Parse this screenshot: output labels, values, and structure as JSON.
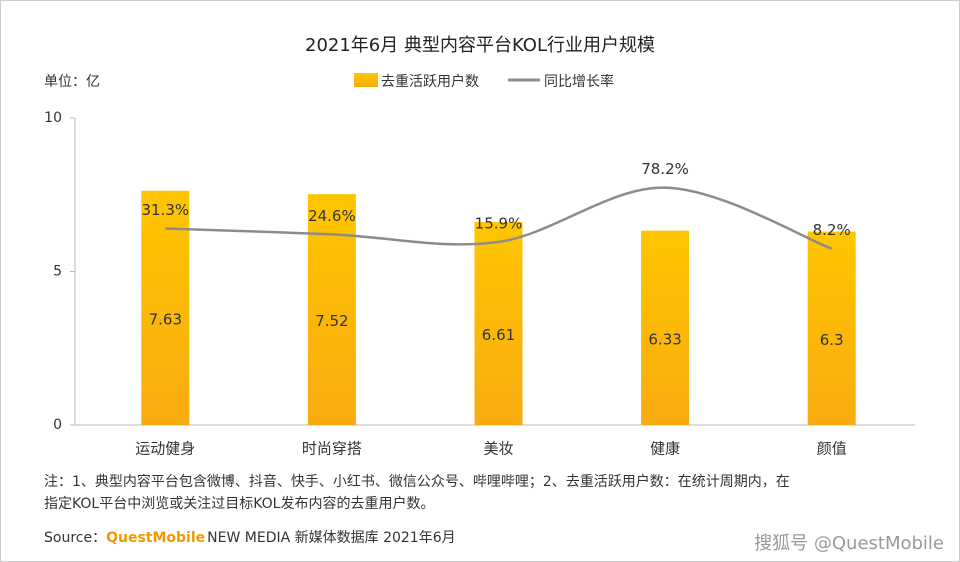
{
  "chart_data": {
    "type": "bar",
    "title": "2021年6月 典型内容平台KOL行业用户规模",
    "unit_label": "单位：亿",
    "categories": [
      "运动健身",
      "时尚穿搭",
      "美妆",
      "健康",
      "颜值"
    ],
    "series": [
      {
        "name": "去重活跃用户数",
        "color": "#fdbf00",
        "values": [
          7.63,
          7.52,
          6.61,
          6.33,
          6.3
        ]
      },
      {
        "name": "同比增长率",
        "color": "#8c8c8c",
        "type": "line",
        "axis": "y2",
        "values": [
          31.3,
          24.6,
          15.9,
          78.2,
          8.2
        ],
        "value_labels": [
          "31.3%",
          "24.6%",
          "15.9%",
          "78.2%",
          "8.2%"
        ]
      }
    ],
    "ylim": [
      0,
      10
    ],
    "yticks": [
      0,
      5,
      10
    ],
    "y2lim": [
      -194,
      158
    ],
    "note": [
      "注：1、典型内容平台包含微博、抖音、快手、小红书、微信公众号、哔哩哔哩；2、去重活跃用户数：在统计周期内，在",
      "指定KOL平台中浏览或关注过目标KOL发布内容的去重用户数。"
    ],
    "source": {
      "label": "Source：",
      "brand": "QuestMobile",
      "text": "NEW MEDIA 新媒体数据库 2021年6月"
    },
    "watermark": "搜狐号 @QuestMobile"
  }
}
